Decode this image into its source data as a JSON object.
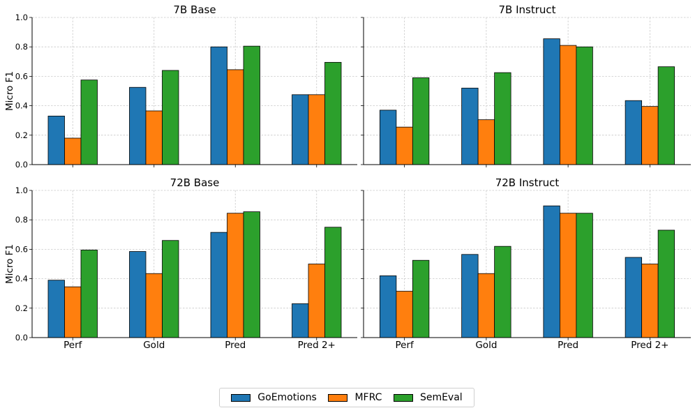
{
  "chart_data": [
    {
      "type": "bar",
      "title": "7B Base",
      "categories": [
        "Perf",
        "Gold",
        "Pred",
        "Pred 2+"
      ],
      "ylabel": "Micro F1",
      "ylim": [
        0,
        1
      ],
      "yticks": [
        "0.0",
        "0.2",
        "0.4",
        "0.6",
        "0.8",
        "1.0"
      ],
      "series": [
        {
          "name": "GoEmotions",
          "values": [
            0.33,
            0.525,
            0.8,
            0.475
          ]
        },
        {
          "name": "MFRC",
          "values": [
            0.18,
            0.365,
            0.645,
            0.475
          ]
        },
        {
          "name": "SemEval",
          "values": [
            0.575,
            0.64,
            0.805,
            0.695
          ]
        }
      ]
    },
    {
      "type": "bar",
      "title": "7B Instruct",
      "categories": [
        "Perf",
        "Gold",
        "Pred",
        "Pred 2+"
      ],
      "ylabel": "",
      "ylim": [
        0,
        1
      ],
      "yticks": [],
      "series": [
        {
          "name": "GoEmotions",
          "values": [
            0.37,
            0.52,
            0.855,
            0.435
          ]
        },
        {
          "name": "MFRC",
          "values": [
            0.255,
            0.305,
            0.81,
            0.395
          ]
        },
        {
          "name": "SemEval",
          "values": [
            0.59,
            0.625,
            0.8,
            0.665
          ]
        }
      ]
    },
    {
      "type": "bar",
      "title": "72B Base",
      "categories": [
        "Perf",
        "Gold",
        "Pred",
        "Pred 2+"
      ],
      "ylabel": "Micro F1",
      "ylim": [
        0,
        1
      ],
      "yticks": [
        "0.0",
        "0.2",
        "0.4",
        "0.6",
        "0.8",
        "1.0"
      ],
      "series": [
        {
          "name": "GoEmotions",
          "values": [
            0.39,
            0.585,
            0.715,
            0.23
          ]
        },
        {
          "name": "MFRC",
          "values": [
            0.345,
            0.435,
            0.845,
            0.5
          ]
        },
        {
          "name": "SemEval",
          "values": [
            0.595,
            0.66,
            0.855,
            0.75
          ]
        }
      ]
    },
    {
      "type": "bar",
      "title": "72B Instruct",
      "categories": [
        "Perf",
        "Gold",
        "Pred",
        "Pred 2+"
      ],
      "ylabel": "",
      "ylim": [
        0,
        1
      ],
      "yticks": [],
      "series": [
        {
          "name": "GoEmotions",
          "values": [
            0.42,
            0.565,
            0.895,
            0.545
          ]
        },
        {
          "name": "MFRC",
          "values": [
            0.315,
            0.435,
            0.845,
            0.5
          ]
        },
        {
          "name": "SemEval",
          "values": [
            0.525,
            0.62,
            0.845,
            0.73
          ]
        }
      ]
    }
  ],
  "legend": {
    "position": "bottom-center",
    "items": [
      {
        "label": "GoEmotions",
        "color": "#1f77b4"
      },
      {
        "label": "MFRC",
        "color": "#ff7f0e"
      },
      {
        "label": "SemEval",
        "color": "#2ca02c"
      }
    ]
  }
}
